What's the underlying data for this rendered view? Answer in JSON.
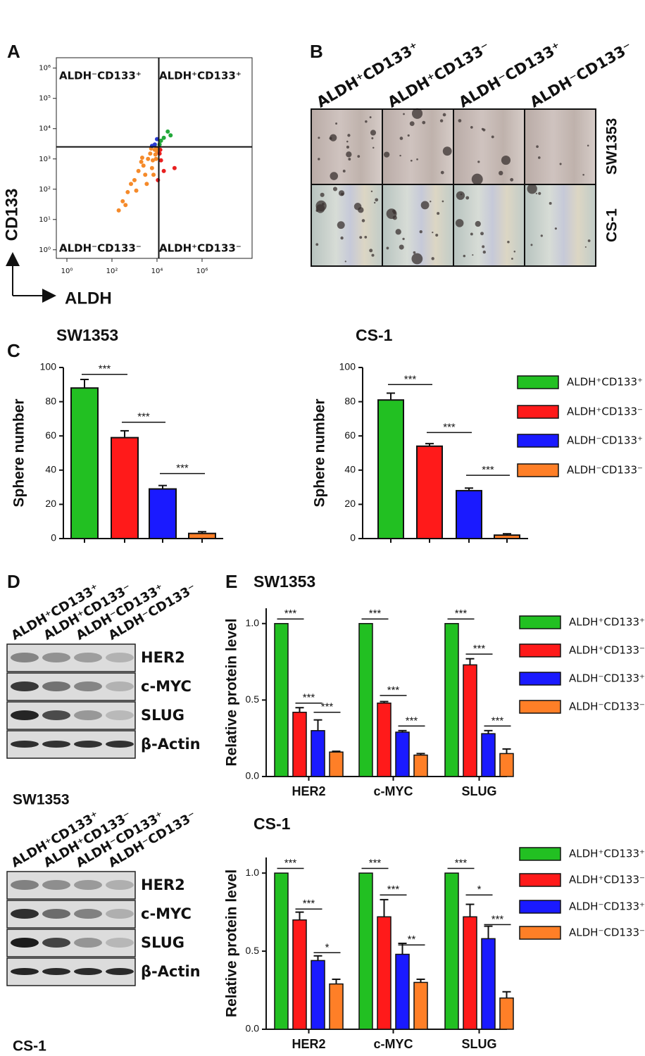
{
  "panel_labels": [
    "A",
    "B",
    "C",
    "D",
    "E"
  ],
  "images": {
    "columns": [
      "ALDH⁺CD133⁺",
      "ALDH⁺CD133⁻",
      "ALDH⁻CD133⁺",
      "ALDH⁻CD133⁻"
    ],
    "rows": [
      "SW1353",
      "CS-1"
    ]
  },
  "blots": [
    {
      "columns": [
        "ALDH⁺CD133⁺",
        "ALDH⁺CD133⁻",
        "ALDH⁻CD133⁺",
        "ALDH⁻CD133⁻"
      ],
      "rows": [
        "HER2",
        "c-MYC",
        "SLUG",
        "β-Actin"
      ],
      "caption": "SW1353"
    },
    {
      "columns": [
        "ALDH⁺CD133⁺",
        "ALDH⁺CD133⁻",
        "ALDH⁻CD133⁺",
        "ALDH⁻CD133⁻"
      ],
      "rows": [
        "HER2",
        "c-MYC",
        "SLUG",
        "β-Actin"
      ],
      "caption": "CS-1"
    }
  ],
  "chart_data": [
    {
      "type": "scatter",
      "xlabel": "ALDH",
      "ylabel": "CD133",
      "log_x": true,
      "log_y": true,
      "xlim": [
        0.34,
        166000000
      ],
      "ylim": [
        0.52,
        2200000
      ],
      "xticks": [
        {
          "value": 1,
          "label": "10⁰"
        },
        {
          "value": 100,
          "label": "10²"
        },
        {
          "value": 10000,
          "label": "10⁴"
        },
        {
          "value": 1000000,
          "label": "10⁶"
        }
      ],
      "yticks": [
        {
          "value": 1,
          "label": "10⁰"
        },
        {
          "value": 10,
          "label": "10¹"
        },
        {
          "value": 100,
          "label": "10²"
        },
        {
          "value": 1000,
          "label": "10³"
        },
        {
          "value": 10000,
          "label": "10⁴"
        },
        {
          "value": 100000,
          "label": "10⁵"
        },
        {
          "value": 1000000,
          "label": "10⁶"
        }
      ],
      "gates": {
        "x": 12000,
        "y": 2500
      },
      "quadrants": [
        "ALDH⁻CD133⁺",
        "ALDH⁺CD133⁺",
        "ALDH⁻CD133⁻",
        "ALDH⁺CD133⁻"
      ],
      "series": [
        {
          "color": "#f58a2a",
          "x": [
            2000,
            5000,
            8000,
            3000,
            1000,
            500,
            300,
            9000,
            6000,
            4000,
            1500,
            700,
            200,
            10000,
            2500,
            7000,
            1200,
            400,
            9500,
            3500,
            5500,
            8500,
            2200,
            6500
          ],
          "values": [
            800,
            1500,
            2000,
            300,
            200,
            80,
            40,
            1000,
            500,
            1000,
            400,
            150,
            20,
            1800,
            600,
            300,
            90,
            30,
            2300,
            150,
            2200,
            1400,
            1100,
            900
          ]
        },
        {
          "color": "#e82020",
          "x": [
            13000,
            15000,
            20000,
            11000,
            60000,
            14000
          ],
          "values": [
            1500,
            900,
            400,
            200,
            500,
            2000
          ]
        },
        {
          "color": "#22a83a",
          "x": [
            13000,
            20000,
            30000,
            15000,
            40000
          ],
          "values": [
            3000,
            5000,
            8000,
            4000,
            6000
          ]
        },
        {
          "color": "#2a3ad0",
          "x": [
            8000,
            10000,
            6000
          ],
          "values": [
            3000,
            4500,
            2700
          ]
        }
      ]
    },
    {
      "type": "bar",
      "title": "SW1353",
      "ylabel": "Sphere number",
      "ylim": [
        0,
        100
      ],
      "yticks": [
        0,
        20,
        40,
        60,
        80,
        100
      ],
      "values": [
        88,
        59,
        29,
        3
      ],
      "errors": [
        5,
        4,
        2,
        1
      ],
      "colors": [
        "#22c022",
        "#ff1a1a",
        "#1a1aff",
        "#ff7f27"
      ],
      "annotations": [
        {
          "text": "***",
          "from": 0,
          "to": 1,
          "y": 96
        },
        {
          "text": "***",
          "from": 1,
          "to": 2,
          "y": 68
        },
        {
          "text": "***",
          "from": 2,
          "to": 3,
          "y": 38
        }
      ]
    },
    {
      "type": "bar",
      "title": "CS-1",
      "ylabel": "Sphere number",
      "ylim": [
        0,
        100
      ],
      "yticks": [
        0,
        20,
        40,
        60,
        80,
        100
      ],
      "categories": [
        "ALDH⁺CD133⁺",
        "ALDH⁺CD133⁻",
        "ALDH⁻CD133⁺",
        "ALDH⁻CD133⁻"
      ],
      "values": [
        81,
        54,
        28,
        2
      ],
      "errors": [
        4,
        1.5,
        1.5,
        0.8
      ],
      "colors": [
        "#22c022",
        "#ff1a1a",
        "#1a1aff",
        "#ff7f27"
      ],
      "legend": "right",
      "annotations": [
        {
          "text": "***",
          "from": 0,
          "to": 1,
          "y": 90
        },
        {
          "text": "***",
          "from": 1,
          "to": 2,
          "y": 62
        },
        {
          "text": "***",
          "from": 2,
          "to": 3,
          "y": 37
        }
      ]
    },
    {
      "type": "grouped_bar",
      "title": "SW1353",
      "ylabel": "Relative protein level",
      "categories": [
        "HER2",
        "c-MYC",
        "SLUG"
      ],
      "ylim": [
        0,
        1.1
      ],
      "yticks": [
        {
          "value": 0,
          "label": "0.0"
        },
        {
          "value": 0.5,
          "label": "0.5"
        },
        {
          "value": 1,
          "label": "1.0"
        }
      ],
      "legend": "right",
      "series": [
        {
          "name": "ALDH⁺CD133⁺",
          "color": "#22c022",
          "values": [
            1,
            1,
            1
          ]
        },
        {
          "name": "ALDH⁺CD133⁻",
          "color": "#ff1a1a",
          "values": [
            0.42,
            0.48,
            0.73
          ],
          "errors": [
            0.03,
            0.01,
            0.04
          ]
        },
        {
          "name": "ALDH⁻CD133⁺",
          "color": "#1a1aff",
          "values": [
            0.3,
            0.29,
            0.28
          ],
          "errors": [
            0.07,
            0.01,
            0.02
          ]
        },
        {
          "name": "ALDH⁻CD133⁻",
          "color": "#ff7f27",
          "values": [
            0.16,
            0.14,
            0.15
          ],
          "errors": [
            0.005,
            0.01,
            0.03
          ]
        }
      ],
      "annotations": [
        {
          "text": "***",
          "category": 0,
          "from": 0,
          "to": 1,
          "y": 1.03
        },
        {
          "text": "***",
          "category": 0,
          "from": 1,
          "to": 2,
          "y": 0.48
        },
        {
          "text": "***",
          "category": 0,
          "from": 2,
          "to": 3,
          "y": 0.42
        },
        {
          "text": "***",
          "category": 1,
          "from": 0,
          "to": 1,
          "y": 1.03
        },
        {
          "text": "***",
          "category": 1,
          "from": 1,
          "to": 2,
          "y": 0.53
        },
        {
          "text": "***",
          "category": 1,
          "from": 2,
          "to": 3,
          "y": 0.33
        },
        {
          "text": "***",
          "category": 2,
          "from": 0,
          "to": 1,
          "y": 1.03
        },
        {
          "text": "***",
          "category": 2,
          "from": 1,
          "to": 2,
          "y": 0.8
        },
        {
          "text": "***",
          "category": 2,
          "from": 2,
          "to": 3,
          "y": 0.33
        }
      ]
    },
    {
      "type": "grouped_bar",
      "title": "CS-1",
      "ylabel": "Relative protein level",
      "categories": [
        "HER2",
        "c-MYC",
        "SLUG"
      ],
      "ylim": [
        0,
        1.1
      ],
      "yticks": [
        {
          "value": 0,
          "label": "0.0"
        },
        {
          "value": 0.5,
          "label": "0.5"
        },
        {
          "value": 1,
          "label": "1.0"
        }
      ],
      "legend": "right",
      "series": [
        {
          "name": "ALDH⁺CD133⁺",
          "color": "#22c022",
          "values": [
            1,
            1,
            1
          ]
        },
        {
          "name": "ALDH⁺CD133⁻",
          "color": "#ff1a1a",
          "values": [
            0.7,
            0.72,
            0.72
          ],
          "errors": [
            0.05,
            0.11,
            0.08
          ]
        },
        {
          "name": "ALDH⁻CD133⁺",
          "color": "#1a1aff",
          "values": [
            0.44,
            0.48,
            0.58
          ],
          "errors": [
            0.03,
            0.07,
            0.08
          ]
        },
        {
          "name": "ALDH⁻CD133⁻",
          "color": "#ff7f27",
          "values": [
            0.29,
            0.3,
            0.2
          ],
          "errors": [
            0.03,
            0.02,
            0.04
          ]
        }
      ],
      "annotations": [
        {
          "text": "***",
          "category": 0,
          "from": 0,
          "to": 1,
          "y": 1.03
        },
        {
          "text": "***",
          "category": 0,
          "from": 1,
          "to": 2,
          "y": 0.77
        },
        {
          "text": "*",
          "category": 0,
          "from": 2,
          "to": 3,
          "y": 0.49
        },
        {
          "text": "***",
          "category": 1,
          "from": 0,
          "to": 1,
          "y": 1.03
        },
        {
          "text": "***",
          "category": 1,
          "from": 1,
          "to": 2,
          "y": 0.86
        },
        {
          "text": "**",
          "category": 1,
          "from": 2,
          "to": 3,
          "y": 0.54
        },
        {
          "text": "***",
          "category": 2,
          "from": 0,
          "to": 1,
          "y": 1.03
        },
        {
          "text": "*",
          "category": 2,
          "from": 1,
          "to": 2,
          "y": 0.86
        },
        {
          "text": "***",
          "category": 2,
          "from": 2,
          "to": 3,
          "y": 0.67
        }
      ]
    }
  ]
}
